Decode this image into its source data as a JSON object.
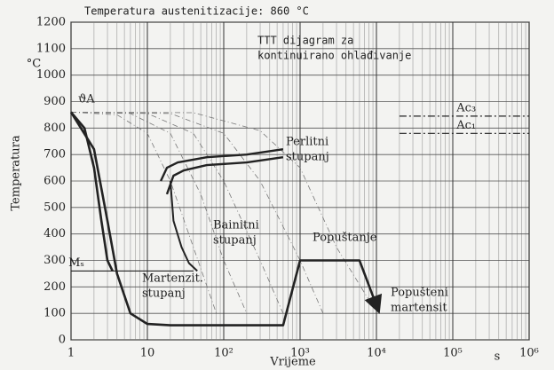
{
  "chart_data": {
    "type": "line",
    "title": "Temperatura austenitizacije: 860 °C",
    "y_label": "Temperatura",
    "y_unit": "°C",
    "x_label": "Vrijeme",
    "x_unit": "s",
    "xscale": "log",
    "xlim": [
      1,
      1000000
    ],
    "ylim": [
      0,
      1200
    ],
    "xticks": [
      1,
      10,
      {
        "value": 100,
        "label": "10²"
      },
      {
        "value": 1000,
        "label": "10³"
      },
      {
        "value": 10000,
        "label": "10⁴"
      },
      {
        "value": 100000,
        "label": "10⁵"
      },
      {
        "value": 1000000,
        "label": "10⁶"
      }
    ],
    "yticks": [
      0,
      100,
      200,
      300,
      400,
      500,
      600,
      700,
      800,
      900,
      1000,
      1100,
      1200
    ],
    "grid": true,
    "annotations": {
      "diagram": [
        "TTT dijagram za",
        "kontinuirano ohlađivanje"
      ],
      "perlite": [
        "Perlitni",
        "stupanj"
      ],
      "bainite": [
        "Bainitni",
        "stupanj"
      ],
      "tempering": [
        "Popuštanje"
      ],
      "martensite": [
        "Martenzit.",
        "stupanj"
      ],
      "tempered": [
        "Popušteni",
        "martensit"
      ],
      "austenite": [
        "ϑA"
      ]
    },
    "reference_lines": [
      {
        "label": "Ac₃",
        "value": 845
      },
      {
        "label": "Ac₁",
        "value": 780
      },
      {
        "label": "Mₛ",
        "value": 260
      }
    ],
    "series": [
      {
        "color": "#777",
        "width": 0.8,
        "dash": true,
        "x": [
          1,
          4,
          10,
          20,
          40,
          80
        ],
        "values": [
          860,
          850,
          780,
          600,
          350,
          100
        ]
      },
      {
        "color": "#777",
        "width": 0.8,
        "dash": true,
        "x": [
          1,
          6,
          20,
          50,
          100,
          200
        ],
        "values": [
          860,
          855,
          780,
          550,
          300,
          100
        ]
      },
      {
        "color": "#777",
        "width": 0.8,
        "dash": true,
        "x": [
          1,
          10,
          40,
          100,
          300,
          600
        ],
        "values": [
          860,
          855,
          780,
          600,
          300,
          100
        ]
      },
      {
        "color": "#777",
        "width": 0.8,
        "dash": true,
        "x": [
          1,
          20,
          100,
          300,
          1000,
          2000
        ],
        "values": [
          860,
          855,
          780,
          600,
          300,
          100
        ]
      },
      {
        "color": "#777",
        "width": 0.8,
        "dash": true,
        "x": [
          1,
          40,
          300,
          1000,
          3000,
          8000
        ],
        "values": [
          860,
          858,
          790,
          650,
          350,
          150
        ]
      },
      {
        "color": "#222",
        "width": 2.6,
        "dash": false,
        "x": [
          1,
          1.5,
          2,
          2.5,
          3,
          3.5
        ],
        "values": [
          860,
          800,
          650,
          450,
          300,
          260
        ]
      },
      {
        "color": "#222",
        "width": 2.6,
        "dash": false,
        "arrow": true,
        "x": [
          1,
          2,
          3,
          4,
          6,
          10,
          20,
          600,
          1000,
          6000,
          10000
        ],
        "values": [
          860,
          720,
          450,
          250,
          100,
          60,
          55,
          55,
          300,
          300,
          130
        ]
      },
      {
        "color": "#222",
        "width": 2.4,
        "dash": false,
        "x": [
          15,
          18,
          25,
          60,
          200,
          600
        ],
        "values": [
          600,
          650,
          670,
          690,
          700,
          720
        ]
      },
      {
        "color": "#222",
        "width": 2.4,
        "dash": false,
        "x": [
          18,
          22,
          30,
          60,
          200,
          600
        ],
        "values": [
          550,
          620,
          640,
          660,
          670,
          690
        ]
      },
      {
        "color": "#222",
        "width": 2.0,
        "dash": false,
        "x": [
          20,
          22,
          28,
          35,
          45
        ],
        "values": [
          600,
          450,
          350,
          290,
          260
        ]
      }
    ]
  }
}
